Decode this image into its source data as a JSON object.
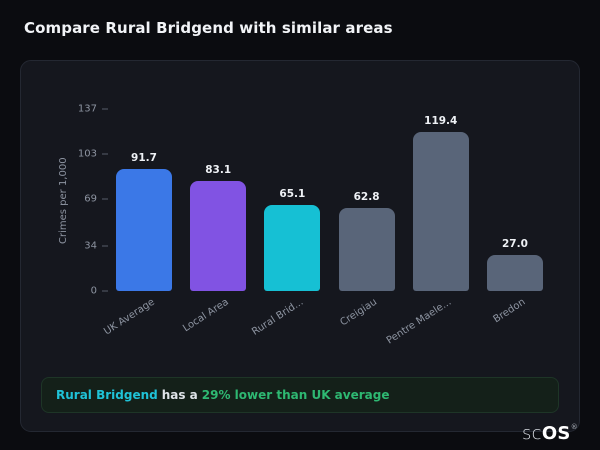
{
  "page": {
    "title": "Compare Rural Bridgend with similar areas"
  },
  "chart_data": {
    "type": "bar",
    "categories": [
      "UK Average",
      "Local Area",
      "Rural Brid...",
      "Creigiau",
      "Pentre Maele...",
      "Bredon"
    ],
    "values": [
      91.7,
      83.1,
      65.1,
      62.8,
      119.4,
      27.0
    ],
    "value_labels": [
      "91.7",
      "83.1",
      "65.1",
      "62.8",
      "119.4",
      "27.0"
    ],
    "bar_colors": [
      "#3b78e7",
      "#8153e3",
      "#16c0d4",
      "#596579",
      "#596579",
      "#596579"
    ],
    "title": "",
    "xlabel": "",
    "ylabel": "Crimes per 1,000",
    "ylim": [
      0,
      137
    ],
    "yticks": [
      0,
      34,
      69,
      103,
      137
    ],
    "grid": false,
    "legend": false
  },
  "note": {
    "subject": "Rural Bridgend",
    "middle": "has a",
    "highlight": "29% lower than UK average",
    "subject_color": "#1fc2d7",
    "highlight_color": "#2eb872"
  },
  "logo": {
    "prefix": "sc",
    "suffix": "OS",
    "registered": "®"
  },
  "colors": {
    "page_background": "#0b0c10",
    "card_background": "#15171e",
    "note_background": "#142019",
    "axis_text": "#8d94a1",
    "value_text": "#eef1f5"
  }
}
